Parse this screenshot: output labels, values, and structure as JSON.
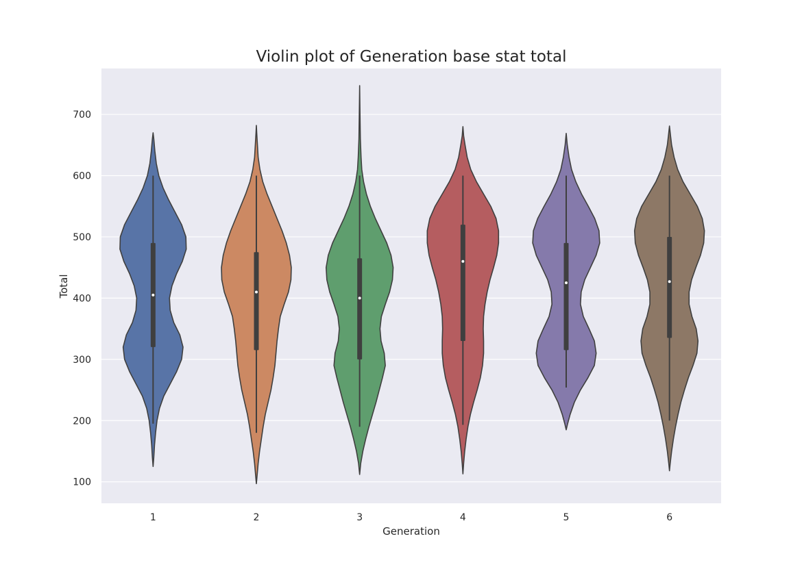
{
  "chart_data": {
    "type": "violin",
    "title": "Violin plot of Generation base stat total",
    "xlabel": "Generation",
    "ylabel": "Total",
    "ylim": [
      65,
      775
    ],
    "yticks": [
      100,
      200,
      300,
      400,
      500,
      600,
      700
    ],
    "categories": [
      "1",
      "2",
      "3",
      "4",
      "5",
      "6"
    ],
    "grid": true,
    "series": [
      {
        "category": "1",
        "color": "#5874a7",
        "min": 195,
        "q1": 320,
        "median": 405,
        "q3": 490,
        "max": 600,
        "kde_min": 125,
        "kde_max": 670,
        "density": [
          [
            125,
            0.0
          ],
          [
            140,
            0.02
          ],
          [
            160,
            0.04
          ],
          [
            180,
            0.07
          ],
          [
            200,
            0.11
          ],
          [
            220,
            0.18
          ],
          [
            240,
            0.3
          ],
          [
            260,
            0.48
          ],
          [
            280,
            0.66
          ],
          [
            300,
            0.8
          ],
          [
            320,
            0.84
          ],
          [
            340,
            0.75
          ],
          [
            360,
            0.58
          ],
          [
            380,
            0.48
          ],
          [
            400,
            0.46
          ],
          [
            420,
            0.53
          ],
          [
            440,
            0.66
          ],
          [
            460,
            0.82
          ],
          [
            480,
            0.93
          ],
          [
            500,
            0.92
          ],
          [
            520,
            0.8
          ],
          [
            540,
            0.62
          ],
          [
            560,
            0.44
          ],
          [
            580,
            0.28
          ],
          [
            600,
            0.16
          ],
          [
            620,
            0.09
          ],
          [
            640,
            0.05
          ],
          [
            660,
            0.02
          ],
          [
            670,
            0.0
          ]
        ]
      },
      {
        "category": "2",
        "color": "#cc8963",
        "min": 180,
        "q1": 315,
        "median": 410,
        "q3": 475,
        "max": 600,
        "kde_min": 97,
        "kde_max": 682,
        "density": [
          [
            97,
            0.0
          ],
          [
            110,
            0.02
          ],
          [
            130,
            0.05
          ],
          [
            150,
            0.09
          ],
          [
            170,
            0.14
          ],
          [
            190,
            0.19
          ],
          [
            210,
            0.25
          ],
          [
            230,
            0.33
          ],
          [
            250,
            0.41
          ],
          [
            270,
            0.47
          ],
          [
            290,
            0.52
          ],
          [
            310,
            0.55
          ],
          [
            330,
            0.58
          ],
          [
            350,
            0.62
          ],
          [
            370,
            0.67
          ],
          [
            390,
            0.78
          ],
          [
            410,
            0.9
          ],
          [
            430,
            0.97
          ],
          [
            450,
            0.98
          ],
          [
            470,
            0.93
          ],
          [
            490,
            0.84
          ],
          [
            510,
            0.72
          ],
          [
            530,
            0.58
          ],
          [
            550,
            0.44
          ],
          [
            570,
            0.3
          ],
          [
            590,
            0.18
          ],
          [
            610,
            0.1
          ],
          [
            630,
            0.05
          ],
          [
            650,
            0.03
          ],
          [
            670,
            0.01
          ],
          [
            682,
            0.0
          ]
        ]
      },
      {
        "category": "3",
        "color": "#5f9e6e",
        "min": 190,
        "q1": 300,
        "median": 400,
        "q3": 465,
        "max": 600,
        "kde_min": 112,
        "kde_max": 747,
        "density": [
          [
            112,
            0.0
          ],
          [
            130,
            0.03
          ],
          [
            150,
            0.09
          ],
          [
            170,
            0.17
          ],
          [
            190,
            0.26
          ],
          [
            210,
            0.36
          ],
          [
            230,
            0.46
          ],
          [
            250,
            0.55
          ],
          [
            270,
            0.64
          ],
          [
            290,
            0.72
          ],
          [
            310,
            0.69
          ],
          [
            330,
            0.6
          ],
          [
            350,
            0.57
          ],
          [
            370,
            0.61
          ],
          [
            390,
            0.72
          ],
          [
            410,
            0.84
          ],
          [
            430,
            0.92
          ],
          [
            450,
            0.94
          ],
          [
            470,
            0.88
          ],
          [
            490,
            0.76
          ],
          [
            510,
            0.6
          ],
          [
            530,
            0.44
          ],
          [
            550,
            0.3
          ],
          [
            570,
            0.19
          ],
          [
            590,
            0.11
          ],
          [
            610,
            0.06
          ],
          [
            630,
            0.04
          ],
          [
            660,
            0.02
          ],
          [
            700,
            0.01
          ],
          [
            747,
            0.0
          ]
        ]
      },
      {
        "category": "4",
        "color": "#b55d60",
        "min": 193,
        "q1": 330,
        "median": 460,
        "q3": 520,
        "max": 600,
        "kde_min": 113,
        "kde_max": 680,
        "density": [
          [
            113,
            0.0
          ],
          [
            130,
            0.02
          ],
          [
            150,
            0.05
          ],
          [
            170,
            0.09
          ],
          [
            190,
            0.14
          ],
          [
            210,
            0.21
          ],
          [
            230,
            0.3
          ],
          [
            250,
            0.4
          ],
          [
            270,
            0.49
          ],
          [
            290,
            0.55
          ],
          [
            310,
            0.58
          ],
          [
            330,
            0.58
          ],
          [
            350,
            0.57
          ],
          [
            370,
            0.58
          ],
          [
            390,
            0.62
          ],
          [
            410,
            0.68
          ],
          [
            430,
            0.76
          ],
          [
            450,
            0.86
          ],
          [
            470,
            0.95
          ],
          [
            490,
            1.0
          ],
          [
            510,
            1.0
          ],
          [
            530,
            0.93
          ],
          [
            550,
            0.78
          ],
          [
            570,
            0.58
          ],
          [
            590,
            0.38
          ],
          [
            610,
            0.22
          ],
          [
            630,
            0.12
          ],
          [
            650,
            0.06
          ],
          [
            665,
            0.02
          ],
          [
            680,
            0.0
          ]
        ]
      },
      {
        "category": "5",
        "color": "#857aab",
        "min": 254,
        "q1": 315,
        "median": 425,
        "q3": 490,
        "max": 600,
        "kde_min": 185,
        "kde_max": 669,
        "density": [
          [
            185,
            0.0
          ],
          [
            195,
            0.04
          ],
          [
            210,
            0.11
          ],
          [
            230,
            0.23
          ],
          [
            250,
            0.4
          ],
          [
            270,
            0.61
          ],
          [
            290,
            0.79
          ],
          [
            310,
            0.84
          ],
          [
            330,
            0.79
          ],
          [
            350,
            0.64
          ],
          [
            370,
            0.48
          ],
          [
            390,
            0.4
          ],
          [
            410,
            0.42
          ],
          [
            430,
            0.52
          ],
          [
            450,
            0.68
          ],
          [
            470,
            0.84
          ],
          [
            490,
            0.94
          ],
          [
            510,
            0.92
          ],
          [
            530,
            0.8
          ],
          [
            550,
            0.62
          ],
          [
            570,
            0.43
          ],
          [
            590,
            0.27
          ],
          [
            610,
            0.15
          ],
          [
            630,
            0.08
          ],
          [
            650,
            0.03
          ],
          [
            669,
            0.0
          ]
        ]
      },
      {
        "category": "6",
        "color": "#8d7866",
        "min": 200,
        "q1": 335,
        "median": 427,
        "q3": 500,
        "max": 600,
        "kde_min": 118,
        "kde_max": 681,
        "density": [
          [
            118,
            0.0
          ],
          [
            130,
            0.02
          ],
          [
            150,
            0.06
          ],
          [
            170,
            0.11
          ],
          [
            190,
            0.17
          ],
          [
            210,
            0.24
          ],
          [
            230,
            0.32
          ],
          [
            250,
            0.42
          ],
          [
            270,
            0.53
          ],
          [
            290,
            0.66
          ],
          [
            310,
            0.77
          ],
          [
            330,
            0.8
          ],
          [
            350,
            0.75
          ],
          [
            370,
            0.63
          ],
          [
            390,
            0.55
          ],
          [
            410,
            0.55
          ],
          [
            430,
            0.62
          ],
          [
            450,
            0.74
          ],
          [
            470,
            0.87
          ],
          [
            490,
            0.96
          ],
          [
            510,
            0.98
          ],
          [
            530,
            0.92
          ],
          [
            550,
            0.78
          ],
          [
            570,
            0.58
          ],
          [
            590,
            0.38
          ],
          [
            610,
            0.23
          ],
          [
            630,
            0.13
          ],
          [
            650,
            0.06
          ],
          [
            665,
            0.03
          ],
          [
            681,
            0.0
          ]
        ]
      }
    ]
  }
}
